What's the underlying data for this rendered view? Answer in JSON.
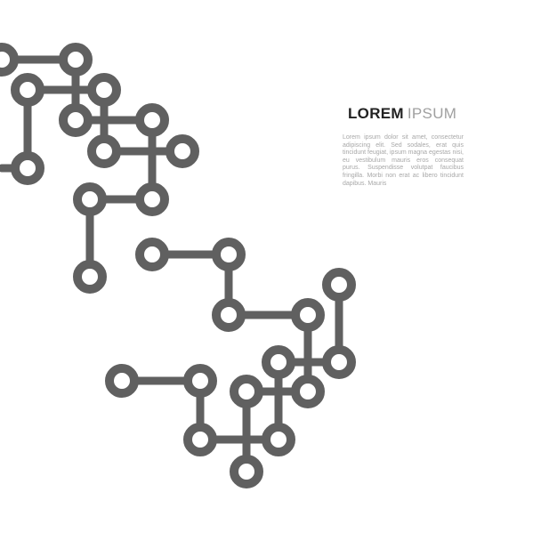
{
  "heading": {
    "word1": "LOREM",
    "word2": "IPSUM"
  },
  "body_text": "Lorem ipsum dolor sit amet, consectetur adipiscing elit. Sed sodales, erat quis tincidunt feugiat, ipsum magna egestas nisi, eu vestibulum mauris eros consequat purus. Suspendisse volutpat faucibus fringilla. Morbi non erat ac libero tincidunt dapibus. Mauris",
  "colors": {
    "background": "#ffffff",
    "circuit": "#606060",
    "title_dark": "#222222",
    "title_light": "#a0a0a0",
    "body_text": "#a8a8a8"
  },
  "graphic": {
    "icon": "circuit-traces-icon"
  }
}
